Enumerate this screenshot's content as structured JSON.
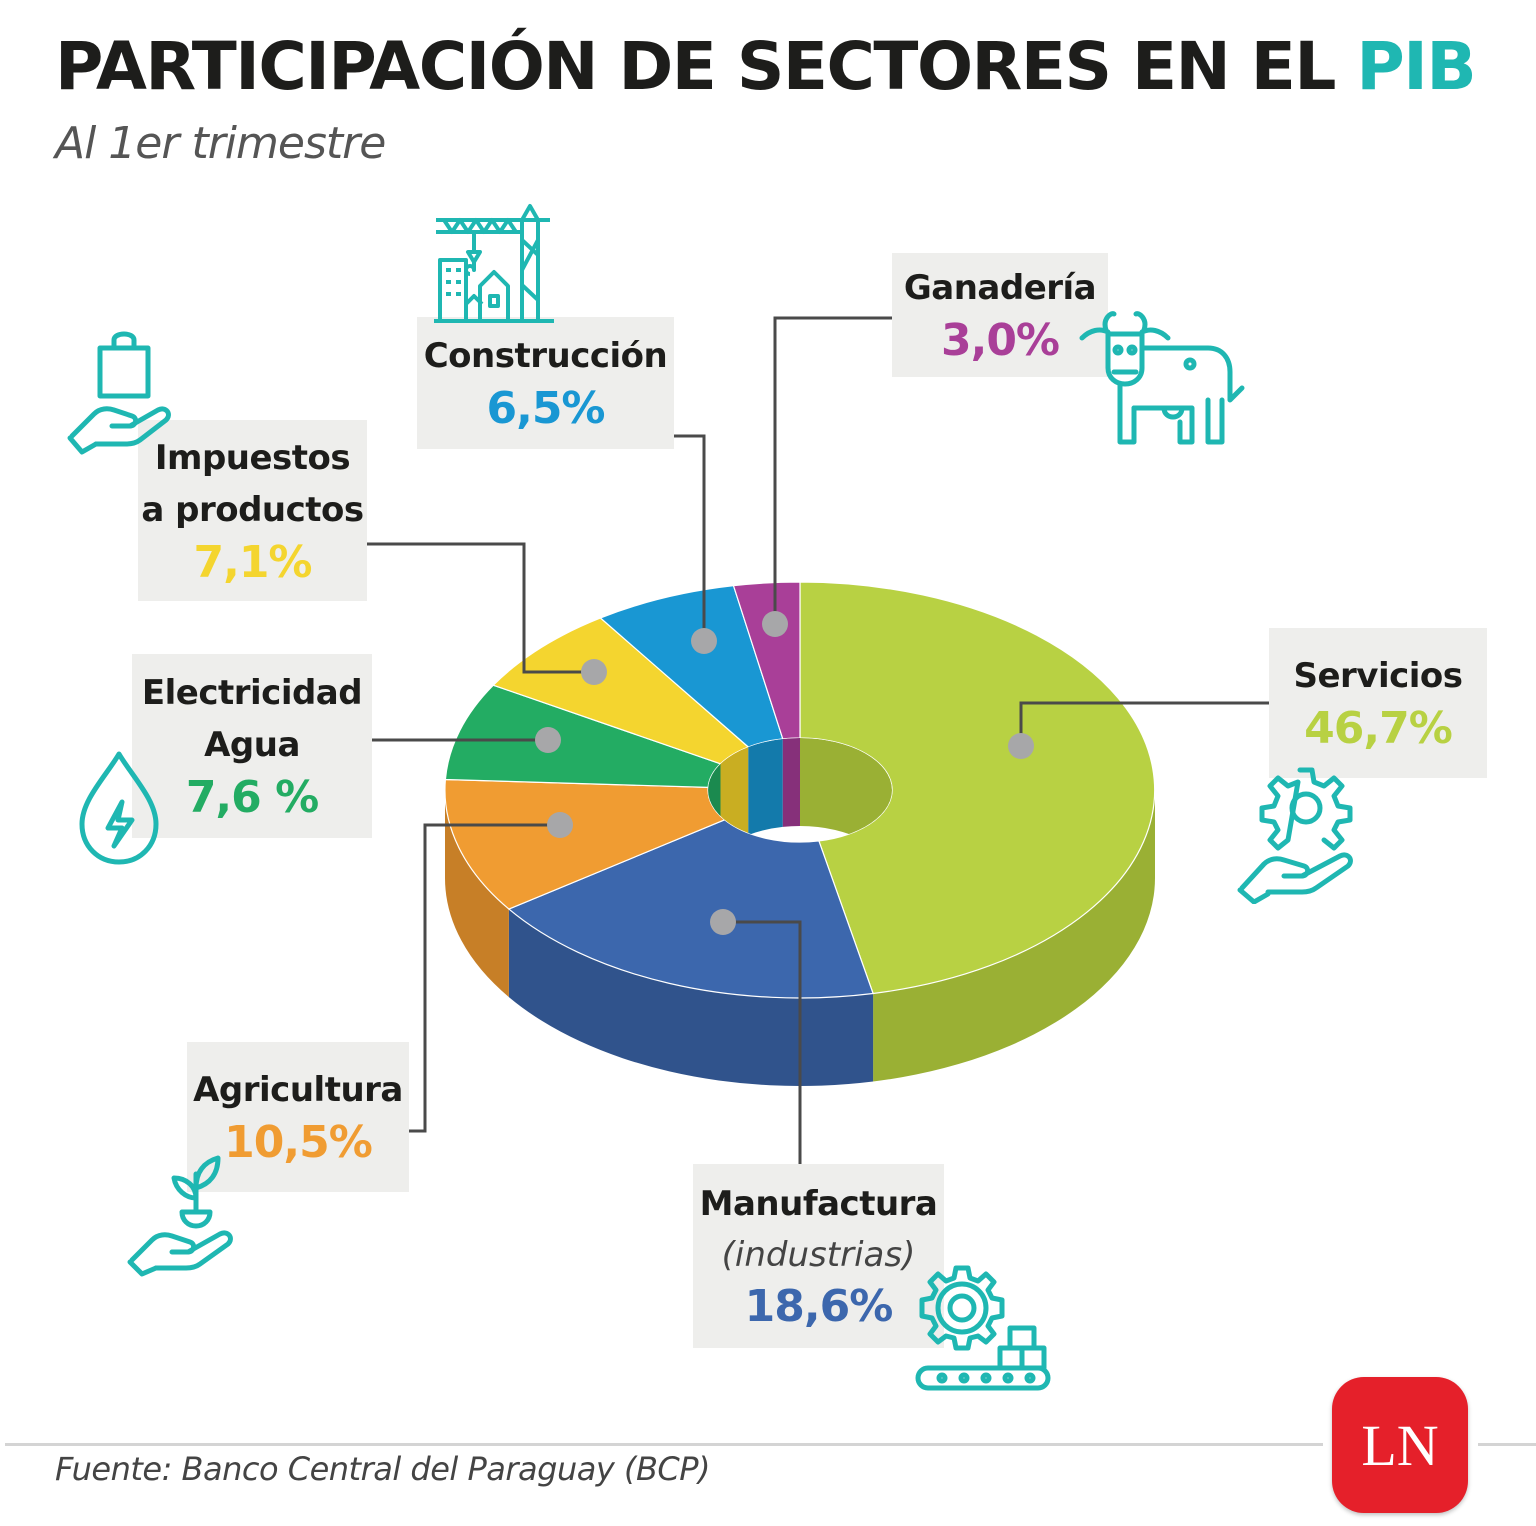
{
  "title": {
    "main": "PARTICIPACIÓN DE SECTORES EN EL",
    "accent": "PIB",
    "accent_color": "#1fb7b2"
  },
  "subtitle": "Al 1er trimestre",
  "chart_data": {
    "type": "pie",
    "variant": "3d-donut",
    "unit": "%",
    "title": "PARTICIPACIÓN DE SECTORES EN EL PIB",
    "subtitle": "Al 1er trimestre",
    "slices": [
      {
        "name": "Servicios",
        "value": 46.7,
        "label": "46,7%",
        "color": "#b8d143",
        "side_color": "#9ab034",
        "icon": "gear-hand-icon"
      },
      {
        "name": "Manufactura",
        "sub": "(industrias)",
        "value": 18.6,
        "label": "18,6%",
        "color": "#3c67ad",
        "side_color": "#30538c",
        "icon": "factory-gear-conveyor-icon"
      },
      {
        "name": "Agricultura",
        "value": 10.5,
        "label": "10,5%",
        "color": "#f09c32",
        "side_color": "#c77f27",
        "icon": "plant-hand-icon"
      },
      {
        "name": "Electricidad Agua",
        "value": 7.6,
        "label": "7,6 %",
        "color": "#23ac63",
        "side_color": "#1b8a4f",
        "icon": "water-drop-bolt-icon"
      },
      {
        "name": "Impuestos a productos",
        "value": 7.1,
        "label": "7,1%",
        "color": "#f4d52f",
        "side_color": "#c9ae22",
        "icon": "shopping-bag-hand-icon"
      },
      {
        "name": "Construcción",
        "value": 6.5,
        "label": "6,5%",
        "color": "#1997d3",
        "side_color": "#137aab",
        "icon": "construction-crane-icon"
      },
      {
        "name": "Ganadería",
        "value": 3.0,
        "label": "3,0%",
        "color": "#a93f98",
        "side_color": "#86307a",
        "icon": "cow-icon"
      }
    ],
    "legend": "none"
  },
  "labels": {
    "servicios": {
      "name": "Servicios",
      "value": "46,7%",
      "color": "#b8d143"
    },
    "manufactura": {
      "name": "Manufactura",
      "sub": "(industrias)",
      "value": "18,6%",
      "color": "#3c67ad"
    },
    "agricultura": {
      "name": "Agricultura",
      "value": "10,5%",
      "color": "#f09c32"
    },
    "electricidad": {
      "name1": "Electricidad",
      "name2": "Agua",
      "value": "7,6 %",
      "color": "#23ac63"
    },
    "impuestos": {
      "name1": "Impuestos",
      "name2": "a productos",
      "value": "7,1%",
      "color": "#f4d52f"
    },
    "construccion": {
      "name": "Construcción",
      "value": "6,5%",
      "color": "#1997d3"
    },
    "ganaderia": {
      "name": "Ganadería",
      "value": "3,0%",
      "color": "#a93f98"
    }
  },
  "icon_color": "#1fb7b2",
  "source": "Fuente: Banco Central del Paraguay (BCP)",
  "logo": {
    "text": "LN",
    "color": "#e5202a"
  }
}
